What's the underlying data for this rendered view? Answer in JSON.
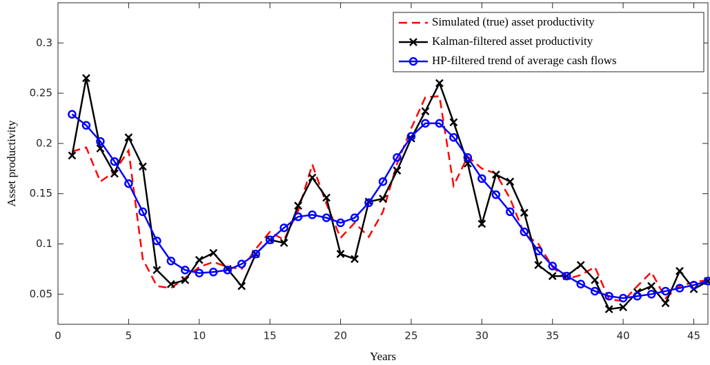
{
  "chart_data": {
    "type": "line",
    "x_label": "Years",
    "y_label": "Asset productivity",
    "x": [
      1,
      2,
      3,
      4,
      5,
      6,
      7,
      8,
      9,
      10,
      11,
      12,
      13,
      14,
      15,
      16,
      17,
      18,
      19,
      20,
      21,
      22,
      23,
      24,
      25,
      26,
      27,
      28,
      29,
      30,
      31,
      32,
      33,
      34,
      35,
      36,
      37,
      38,
      39,
      40,
      41,
      42,
      43,
      44,
      45,
      46
    ],
    "series": [
      {
        "name": "Simulated (true) asset productivity",
        "color": "#ff0000",
        "dash": true,
        "marker": "none",
        "values": [
          0.192,
          0.196,
          0.162,
          0.172,
          0.193,
          0.085,
          0.058,
          0.056,
          0.066,
          0.077,
          0.082,
          0.077,
          0.075,
          0.095,
          0.112,
          0.104,
          0.133,
          0.179,
          0.14,
          0.106,
          0.121,
          0.107,
          0.132,
          0.18,
          0.215,
          0.246,
          0.247,
          0.158,
          0.187,
          0.175,
          0.17,
          0.145,
          0.11,
          0.1,
          0.077,
          0.065,
          0.069,
          0.077,
          0.045,
          0.043,
          0.058,
          0.072,
          0.046,
          0.058,
          0.062,
          0.064
        ]
      },
      {
        "name": "Kalman-filtered asset productivity",
        "color": "#000000",
        "dash": false,
        "marker": "x",
        "values": [
          0.188,
          0.265,
          0.195,
          0.17,
          0.206,
          0.177,
          0.074,
          0.06,
          0.064,
          0.084,
          0.091,
          0.075,
          0.058,
          0.09,
          0.104,
          0.101,
          0.138,
          0.166,
          0.146,
          0.09,
          0.085,
          0.142,
          0.145,
          0.173,
          0.205,
          0.232,
          0.26,
          0.221,
          0.18,
          0.12,
          0.169,
          0.162,
          0.131,
          0.079,
          0.068,
          0.068,
          0.079,
          0.064,
          0.035,
          0.037,
          0.052,
          0.058,
          0.041,
          0.073,
          0.055,
          0.063
        ]
      },
      {
        "name": "HP-filtered trend of average cash flows",
        "color": "#0000ff",
        "dash": false,
        "marker": "o",
        "values": [
          0.229,
          0.218,
          0.202,
          0.182,
          0.16,
          0.132,
          0.103,
          0.083,
          0.074,
          0.071,
          0.072,
          0.074,
          0.08,
          0.09,
          0.104,
          0.116,
          0.127,
          0.129,
          0.126,
          0.121,
          0.126,
          0.141,
          0.162,
          0.186,
          0.207,
          0.22,
          0.22,
          0.206,
          0.186,
          0.165,
          0.149,
          0.132,
          0.112,
          0.093,
          0.078,
          0.068,
          0.06,
          0.053,
          0.048,
          0.046,
          0.048,
          0.05,
          0.053,
          0.056,
          0.059,
          0.063
        ]
      }
    ],
    "xlim": [
      0,
      46
    ],
    "ylim": [
      0.02,
      0.34
    ],
    "xticks": [
      0,
      5,
      10,
      15,
      20,
      25,
      30,
      35,
      40,
      45
    ],
    "yticks": [
      0.05,
      0.1,
      0.15,
      0.2,
      0.25,
      0.3
    ],
    "grid": false,
    "legend": "upper right"
  }
}
